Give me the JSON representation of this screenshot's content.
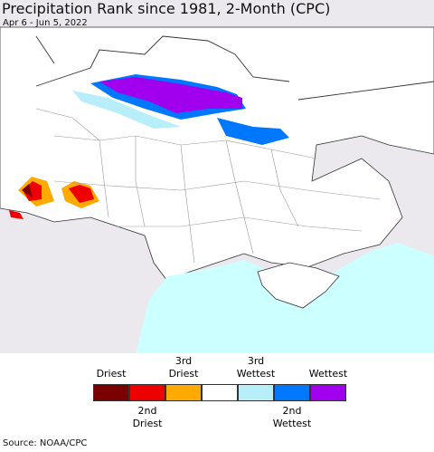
{
  "header": {
    "title": "Precipitation Rank since 1981, 2-Month (CPC)",
    "subtitle": "Apr 6 - Jun 5, 2022"
  },
  "legend": {
    "colors": [
      "#7a0000",
      "#ee0000",
      "#ffaa00",
      "#ffffff",
      "#b8eefa",
      "#0077ff",
      "#a000ee"
    ],
    "top_labels": [
      "Driest",
      "3rd Driest",
      "3rd Wettest",
      "Wettest"
    ],
    "bottom_labels": [
      "2nd Driest",
      "2nd Wettest"
    ]
  },
  "source": "Source: NOAA/CPC"
}
